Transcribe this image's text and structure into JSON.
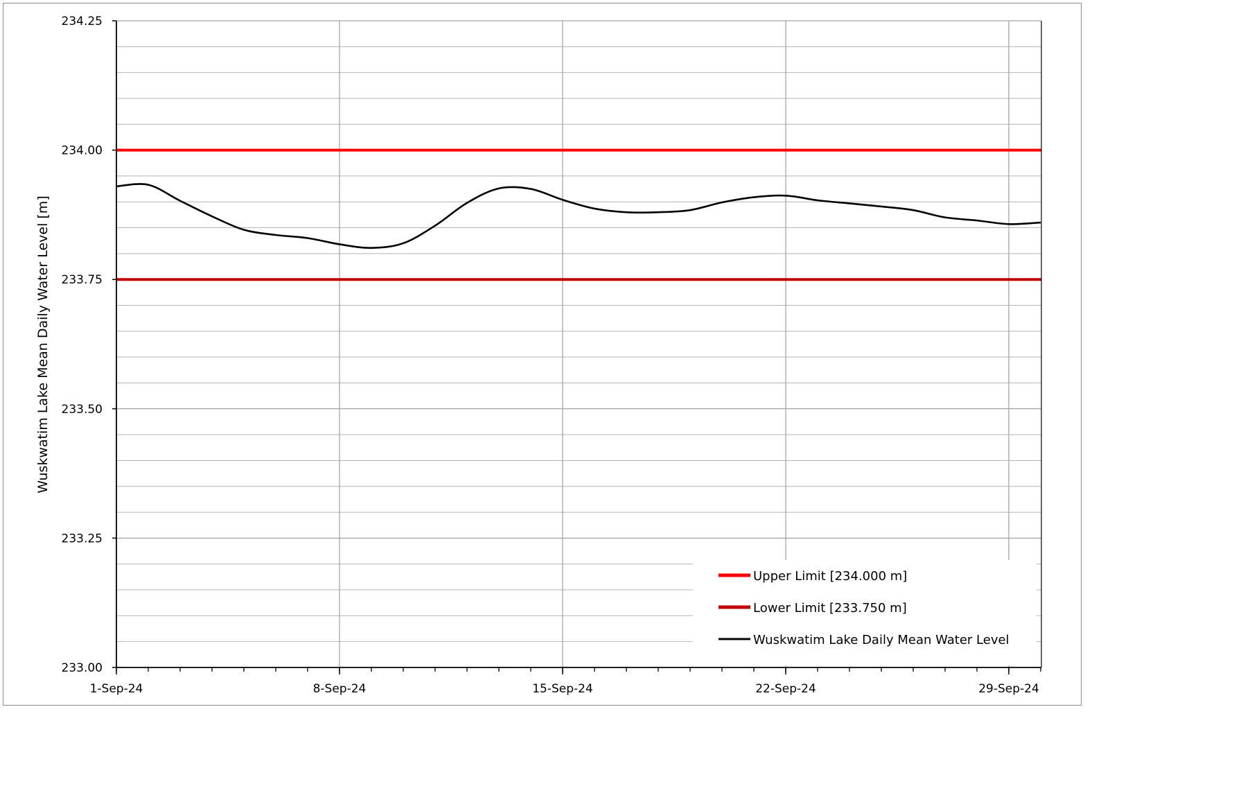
{
  "chart_data": {
    "type": "line",
    "ylabel": "Wuskwatim Lake Mean Daily Water Level [m]",
    "xlabel": "",
    "title": "",
    "ylim": [
      233.0,
      234.25
    ],
    "yticks": [
      "233.00",
      "233.25",
      "233.50",
      "233.75",
      "234.00",
      "234.25"
    ],
    "xlim": [
      "2024-09-01",
      "2024-09-30"
    ],
    "xticks": [
      {
        "date": "2024-09-01",
        "label": "1-Sep-24"
      },
      {
        "date": "2024-09-08",
        "label": "8-Sep-24"
      },
      {
        "date": "2024-09-15",
        "label": "15-Sep-24"
      },
      {
        "date": "2024-09-22",
        "label": "22-Sep-24"
      },
      {
        "date": "2024-09-29",
        "label": "29-Sep-24"
      }
    ],
    "grid": true,
    "legend_position": "bottom-right",
    "series": [
      {
        "name": "Upper Limit [234.000 m]",
        "color": "#ff0000",
        "points": [
          [
            "2024-09-01",
            234.0
          ],
          [
            "2024-09-30",
            234.0
          ]
        ]
      },
      {
        "name": "Lower Limit [233.750 m]",
        "color": "#c00000",
        "points": [
          [
            "2024-09-01",
            233.75
          ],
          [
            "2024-09-30",
            233.75
          ]
        ]
      },
      {
        "name": "Wuskwatim Lake Daily Mean Water Level",
        "color": "#000000",
        "points": [
          [
            "2024-09-01",
            233.93
          ],
          [
            "2024-09-02",
            233.933
          ],
          [
            "2024-09-03",
            233.902
          ],
          [
            "2024-09-04",
            233.872
          ],
          [
            "2024-09-05",
            233.846
          ],
          [
            "2024-09-06",
            233.836
          ],
          [
            "2024-09-07",
            233.83
          ],
          [
            "2024-09-08",
            233.818
          ],
          [
            "2024-09-09",
            233.811
          ],
          [
            "2024-09-10",
            233.82
          ],
          [
            "2024-09-11",
            233.854
          ],
          [
            "2024-09-12",
            233.898
          ],
          [
            "2024-09-13",
            233.926
          ],
          [
            "2024-09-14",
            233.925
          ],
          [
            "2024-09-15",
            233.904
          ],
          [
            "2024-09-16",
            233.887
          ],
          [
            "2024-09-17",
            233.88
          ],
          [
            "2024-09-18",
            233.88
          ],
          [
            "2024-09-19",
            233.884
          ],
          [
            "2024-09-20",
            233.899
          ],
          [
            "2024-09-21",
            233.909
          ],
          [
            "2024-09-22",
            233.912
          ],
          [
            "2024-09-23",
            233.903
          ],
          [
            "2024-09-24",
            233.897
          ],
          [
            "2024-09-25",
            233.891
          ],
          [
            "2024-09-26",
            233.884
          ],
          [
            "2024-09-27",
            233.87
          ],
          [
            "2024-09-28",
            233.864
          ],
          [
            "2024-09-29",
            233.857
          ],
          [
            "2024-09-30",
            233.86
          ]
        ]
      }
    ]
  }
}
